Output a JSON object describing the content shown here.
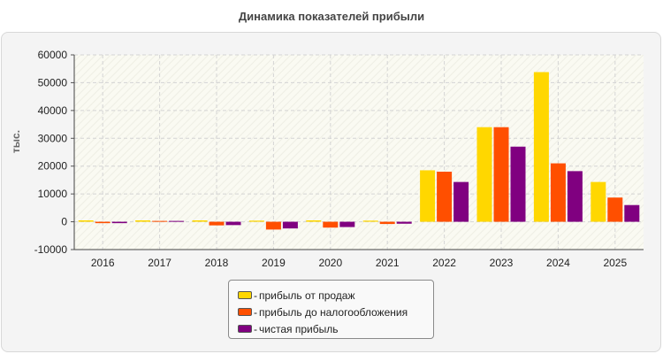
{
  "chart_data": {
    "type": "bar",
    "title": "Динамика показателей прибыли",
    "ylabel": "тыс.",
    "xlabel": "",
    "categories": [
      "2016",
      "2017",
      "2018",
      "2019",
      "2020",
      "2021",
      "2022",
      "2023",
      "2024",
      "2025"
    ],
    "series": [
      {
        "name": "прибыль от продаж",
        "color": "#ffd700",
        "values": [
          500,
          500,
          500,
          400,
          500,
          400,
          18500,
          34000,
          53800,
          14300
        ]
      },
      {
        "name": "прибыль до налогообложения",
        "color": "#ff4f00",
        "values": [
          -500,
          300,
          -1300,
          -2800,
          -2100,
          -800,
          18000,
          34000,
          21000,
          8700
        ]
      },
      {
        "name": "чистая прибыль",
        "color": "#800080",
        "values": [
          -500,
          300,
          -1200,
          -2400,
          -1900,
          -700,
          14300,
          27000,
          18200,
          6000
        ]
      }
    ],
    "y_ticks": [
      "60000",
      "50000",
      "40000",
      "30000",
      "20000",
      "10000",
      "0",
      "-10000"
    ],
    "ylim": [
      -10000,
      60000
    ],
    "grid": true,
    "legend_position": "bottom-center"
  },
  "legend": {
    "dash": "-"
  }
}
